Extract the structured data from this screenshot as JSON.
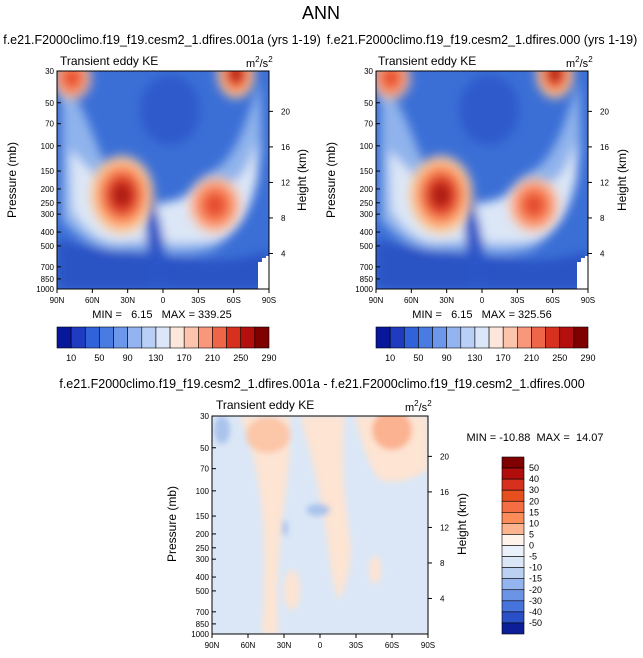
{
  "figure_title": "ANN",
  "chart_data": [
    {
      "type": "heatmap",
      "id": "p1",
      "title": "f.e21.F2000climo.f19_f19.cesm2_1.dfires.001a (yrs 1-19)",
      "field_label": "Transient eddy KE",
      "units_base": "m",
      "units_exp1": "2",
      "units_mid": "/s",
      "units_exp2": "2",
      "min_max_text": "MIN =   6.15   MAX = 339.25",
      "min": 6.15,
      "max": 339.25,
      "x_ticks": [
        "90N",
        "60N",
        "30N",
        "0",
        "30S",
        "60S",
        "90S"
      ],
      "y_label": "Pressure (mb)",
      "y_ticks": [
        "30",
        "50",
        "70",
        "100",
        "150",
        "200",
        "250",
        "300",
        "400",
        "500",
        "700",
        "850",
        "1000"
      ],
      "y2_label": "Height (km)",
      "y2_ticks": [
        "20",
        "16",
        "12",
        "8",
        "4"
      ],
      "y2_values_km": [
        20,
        16,
        12,
        8,
        4
      ],
      "colorbar_levels": [
        10,
        30,
        50,
        70,
        90,
        110,
        130,
        150,
        170,
        190,
        210,
        230,
        250,
        270,
        290
      ],
      "colorbar_labels": [
        "10",
        "50",
        "90",
        "130",
        "170",
        "210",
        "250",
        "290"
      ],
      "features": [
        {
          "lat": 70,
          "p": 30,
          "value": 280
        },
        {
          "lat": -58,
          "p": 30,
          "value": 330
        },
        {
          "lat": 35,
          "p": 220,
          "value": 290
        },
        {
          "lat": -45,
          "p": 260,
          "value": 260
        }
      ]
    },
    {
      "type": "heatmap",
      "id": "p2",
      "title": "f.e21.F2000climo.f19_f19.cesm2_1.dfires.000 (yrs 1-19)",
      "field_label": "Transient eddy KE",
      "units_base": "m",
      "units_exp1": "2",
      "units_mid": "/s",
      "units_exp2": "2",
      "min_max_text": "MIN =   6.15   MAX = 325.56",
      "min": 6.15,
      "max": 325.56,
      "x_ticks": [
        "90N",
        "60N",
        "30N",
        "0",
        "30S",
        "60S",
        "90S"
      ],
      "y_label": "Pressure (mb)",
      "y_ticks": [
        "30",
        "50",
        "70",
        "100",
        "150",
        "200",
        "250",
        "300",
        "400",
        "500",
        "700",
        "850",
        "1000"
      ],
      "y2_label": "Height (km)",
      "y2_ticks": [
        "20",
        "16",
        "12",
        "8",
        "4"
      ],
      "y2_values_km": [
        20,
        16,
        12,
        8,
        4
      ],
      "colorbar_levels": [
        10,
        30,
        50,
        70,
        90,
        110,
        130,
        150,
        170,
        190,
        210,
        230,
        250,
        270,
        290
      ],
      "colorbar_labels": [
        "10",
        "50",
        "90",
        "130",
        "170",
        "210",
        "250",
        "290"
      ],
      "features": [
        {
          "lat": 70,
          "p": 30,
          "value": 280
        },
        {
          "lat": -58,
          "p": 30,
          "value": 320
        },
        {
          "lat": 35,
          "p": 220,
          "value": 285
        },
        {
          "lat": -45,
          "p": 260,
          "value": 255
        }
      ]
    },
    {
      "type": "heatmap",
      "id": "diff",
      "title": "f.e21.F2000climo.f19_f19.cesm2_1.dfires.001a - f.e21.F2000climo.f19_f19.cesm2_1.dfires.000",
      "field_label": "Transient eddy KE",
      "units_base": "m",
      "units_exp1": "2",
      "units_mid": "/s",
      "units_exp2": "2",
      "min_max_text": "MIN = -10.88  MAX =  14.07",
      "min": -10.88,
      "max": 14.07,
      "x_ticks": [
        "90N",
        "60N",
        "30N",
        "0",
        "30S",
        "60S",
        "90S"
      ],
      "y_label": "Pressure (mb)",
      "y_ticks": [
        "30",
        "50",
        "70",
        "100",
        "150",
        "200",
        "250",
        "300",
        "400",
        "500",
        "700",
        "850",
        "1000"
      ],
      "y2_label": "Height (km)",
      "y2_ticks": [
        "20",
        "16",
        "12",
        "8",
        "4"
      ],
      "y2_values_km": [
        20,
        16,
        12,
        8,
        4
      ],
      "colorbar_levels": [
        -50,
        -40,
        -30,
        -20,
        -15,
        -10,
        -5,
        0,
        5,
        10,
        15,
        20,
        30,
        40,
        50
      ],
      "colorbar_labels": [
        "50",
        "40",
        "30",
        "20",
        "15",
        "10",
        "5",
        "0",
        "-5",
        "-10",
        "-15",
        "-20",
        "-30",
        "-40",
        "-50"
      ]
    }
  ]
}
